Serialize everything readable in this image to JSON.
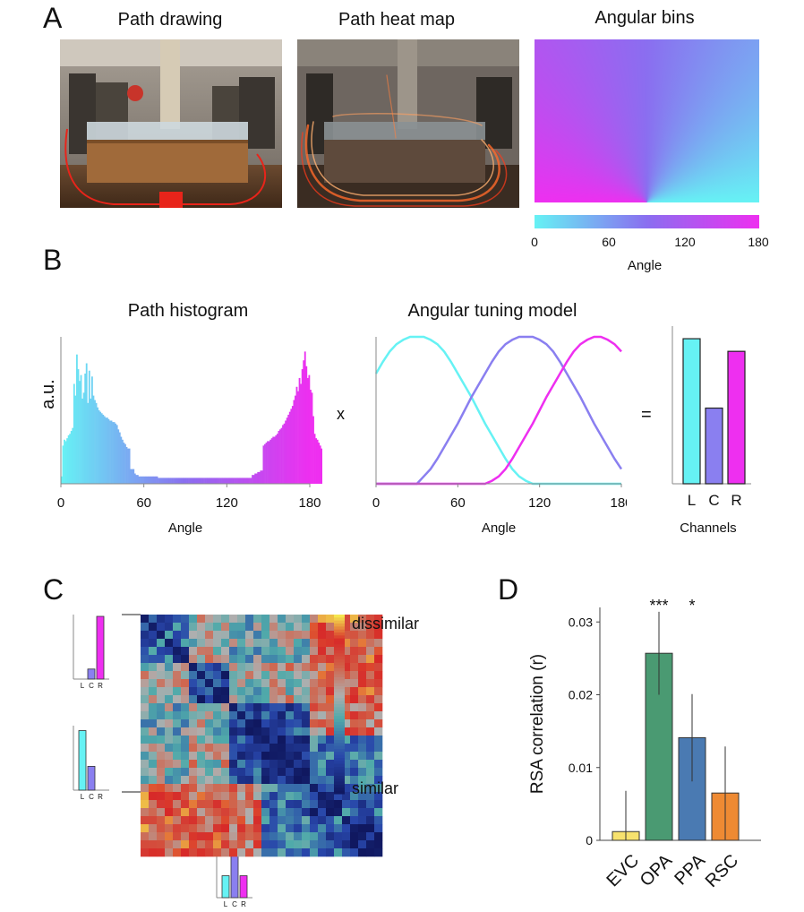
{
  "panels": {
    "a_label": "A",
    "b_label": "B",
    "c_label": "C",
    "d_label": "D"
  },
  "panel_a": {
    "titles": [
      "Path drawing",
      "Path heat map",
      "Angular bins"
    ],
    "colorbar": {
      "ticks": [
        "0",
        "60",
        "120",
        "180"
      ],
      "xlabel": "Angle",
      "color_start": "#66f2f4",
      "color_mid": "#8a6ef0",
      "color_end": "#ee2ff0"
    }
  },
  "panel_b": {
    "histogram_title": "Path histogram",
    "model_title": "Angular tuning model",
    "operator_times": "x",
    "operator_equals": "=",
    "histogram_ylabel": "a.u.",
    "angle_xlabel": "Angle",
    "channels_xlabel": "Channels"
  },
  "panel_c": {
    "colorbar_top_label": "dissimilar",
    "colorbar_bottom_label": "similar",
    "channel_labels": [
      "L",
      "C",
      "R"
    ],
    "inset_top_values": [
      0.0,
      0.16,
      1.0
    ],
    "inset_mid_values": [
      0.95,
      0.38,
      0.0
    ],
    "inset_bottom_values": [
      0.35,
      1.0,
      0.35
    ]
  },
  "chart_data": [
    {
      "type": "bar",
      "id": "path-histogram",
      "title": "Path histogram",
      "xlabel": "Angle",
      "ylabel": "a.u.",
      "xlim": [
        0,
        180
      ],
      "xticks": [
        0,
        60,
        120,
        180
      ],
      "bin_width": 1,
      "values": [
        0.05,
        0.26,
        0.3,
        0.29,
        0.31,
        0.33,
        0.34,
        0.36,
        0.38,
        0.68,
        0.6,
        0.88,
        0.78,
        0.7,
        0.74,
        0.58,
        0.62,
        0.75,
        0.82,
        0.55,
        0.77,
        0.58,
        0.73,
        0.6,
        0.57,
        0.55,
        0.52,
        0.5,
        0.49,
        0.48,
        0.47,
        0.46,
        0.45,
        0.45,
        0.44,
        0.43,
        0.43,
        0.42,
        0.42,
        0.41,
        0.4,
        0.37,
        0.35,
        0.32,
        0.3,
        0.28,
        0.27,
        0.25,
        0.24,
        0.24,
        0.1,
        0.1,
        0.1,
        0.07,
        0.06,
        0.06,
        0.05,
        0.05,
        0.05,
        0.05,
        0.05,
        0.05,
        0.05,
        0.05,
        0.05,
        0.05,
        0.05,
        0.05,
        0.05,
        0.05,
        0.04,
        0.04,
        0.04,
        0.04,
        0.04,
        0.04,
        0.04,
        0.04,
        0.04,
        0.04,
        0.04,
        0.04,
        0.04,
        0.04,
        0.04,
        0.04,
        0.04,
        0.04,
        0.04,
        0.04,
        0.04,
        0.04,
        0.04,
        0.04,
        0.04,
        0.04,
        0.04,
        0.04,
        0.04,
        0.04,
        0.04,
        0.04,
        0.04,
        0.04,
        0.04,
        0.04,
        0.04,
        0.04,
        0.04,
        0.04,
        0.04,
        0.04,
        0.04,
        0.04,
        0.04,
        0.04,
        0.04,
        0.04,
        0.04,
        0.04,
        0.04,
        0.04,
        0.04,
        0.04,
        0.04,
        0.04,
        0.04,
        0.04,
        0.04,
        0.04,
        0.04,
        0.04,
        0.04,
        0.04,
        0.04,
        0.04,
        0.04,
        0.04,
        0.06,
        0.06,
        0.07,
        0.07,
        0.08,
        0.08,
        0.09,
        0.09,
        0.26,
        0.27,
        0.28,
        0.29,
        0.29,
        0.3,
        0.31,
        0.32,
        0.32,
        0.33,
        0.34,
        0.36,
        0.37,
        0.38,
        0.4,
        0.41,
        0.43,
        0.45,
        0.47,
        0.49,
        0.51,
        0.53,
        0.57,
        0.6,
        0.66,
        0.63,
        0.72,
        0.68,
        0.78,
        0.84,
        0.9,
        0.8,
        0.72,
        0.74,
        0.64,
        0.62,
        0.46,
        0.34,
        0.31,
        0.3,
        0.28,
        0.26,
        0.24,
        0.21,
        0.24,
        0.26,
        0.3,
        0.3
      ]
    },
    {
      "type": "line",
      "id": "angular-tuning-model",
      "title": "Angular tuning model",
      "xlabel": "Angle",
      "xlim": [
        0,
        180
      ],
      "xticks": [
        0,
        60,
        120,
        180
      ],
      "series": [
        {
          "name": "L",
          "center": 30,
          "color": "#66f2f4"
        },
        {
          "name": "C",
          "center": 90,
          "color": "#8a7ff0"
        },
        {
          "name": "R",
          "center": 150,
          "color": "#ee2ff0"
        }
      ],
      "x": [
        0,
        5,
        10,
        15,
        20,
        25,
        30,
        35,
        40,
        45,
        50,
        55,
        60,
        65,
        70,
        75,
        80,
        85,
        90,
        95,
        100,
        105,
        110,
        115,
        120,
        125,
        130,
        135,
        140,
        145,
        150,
        155,
        160,
        165,
        170,
        175,
        180
      ],
      "curves": {
        "L": [
          0.75,
          0.83,
          0.9,
          0.95,
          0.98,
          1.0,
          1.0,
          1.0,
          0.98,
          0.95,
          0.9,
          0.83,
          0.75,
          0.67,
          0.59,
          0.5,
          0.41,
          0.33,
          0.25,
          0.17,
          0.1,
          0.05,
          0.02,
          0.0,
          0.0,
          0.0,
          0.0,
          0.0,
          0.0,
          0.0,
          0.0,
          0.0,
          0.0,
          0.0,
          0.0,
          0.0,
          0.0
        ],
        "C": [
          0.0,
          0.0,
          0.0,
          0.0,
          0.0,
          0.0,
          0.0,
          0.05,
          0.1,
          0.17,
          0.25,
          0.33,
          0.41,
          0.5,
          0.59,
          0.67,
          0.75,
          0.83,
          0.9,
          0.95,
          0.98,
          1.0,
          1.0,
          1.0,
          0.98,
          0.95,
          0.9,
          0.83,
          0.75,
          0.67,
          0.59,
          0.5,
          0.41,
          0.33,
          0.25,
          0.17,
          0.1
        ],
        "R": [
          0.0,
          0.0,
          0.0,
          0.0,
          0.0,
          0.0,
          0.0,
          0.0,
          0.0,
          0.0,
          0.0,
          0.0,
          0.0,
          0.0,
          0.0,
          0.0,
          0.0,
          0.02,
          0.05,
          0.1,
          0.17,
          0.25,
          0.33,
          0.41,
          0.5,
          0.59,
          0.67,
          0.75,
          0.83,
          0.9,
          0.95,
          0.98,
          1.0,
          1.0,
          0.98,
          0.95,
          0.9
        ]
      }
    },
    {
      "type": "bar",
      "id": "channels",
      "xlabel": "Channels",
      "categories": [
        "L",
        "C",
        "R"
      ],
      "values": [
        0.92,
        0.48,
        0.84
      ],
      "colors": [
        "#66f2f4",
        "#8a7ff0",
        "#ee2ff0"
      ]
    },
    {
      "type": "heatmap",
      "id": "rdm",
      "size": 30,
      "colorbar": {
        "top": "dissimilar",
        "bottom": "similar"
      },
      "groups": [
        [
          0,
          6
        ],
        [
          6,
          11
        ],
        [
          11,
          15
        ],
        [
          15,
          21
        ],
        [
          21,
          25
        ],
        [
          25,
          30
        ]
      ],
      "block_means": [
        [
          0.25,
          0.55,
          0.45,
          0.5,
          0.8,
          0.8
        ],
        [
          0.55,
          0.15,
          0.5,
          0.55,
          0.75,
          0.78
        ],
        [
          0.45,
          0.5,
          0.12,
          0.2,
          0.7,
          0.72
        ],
        [
          0.5,
          0.55,
          0.2,
          0.1,
          0.3,
          0.35
        ],
        [
          0.8,
          0.75,
          0.7,
          0.3,
          0.1,
          0.25
        ],
        [
          0.8,
          0.78,
          0.72,
          0.35,
          0.25,
          0.12
        ]
      ]
    },
    {
      "type": "bar",
      "id": "rsa-correlation",
      "categories": [
        "EVC",
        "OPA",
        "PPA",
        "RSC"
      ],
      "values": [
        0.0012,
        0.0257,
        0.0141,
        0.0065
      ],
      "errors": [
        0.0056,
        0.0057,
        0.006,
        0.0064
      ],
      "colors": [
        "#f7e26e",
        "#4a9a72",
        "#4a7ab2",
        "#ee8a33"
      ],
      "significance": [
        "",
        "***",
        "*",
        ""
      ],
      "ylabel": "RSA correlation (r)",
      "ylim": [
        0,
        0.032
      ],
      "yticks": [
        "0",
        "0.01",
        "0.02",
        "0.03"
      ]
    }
  ]
}
